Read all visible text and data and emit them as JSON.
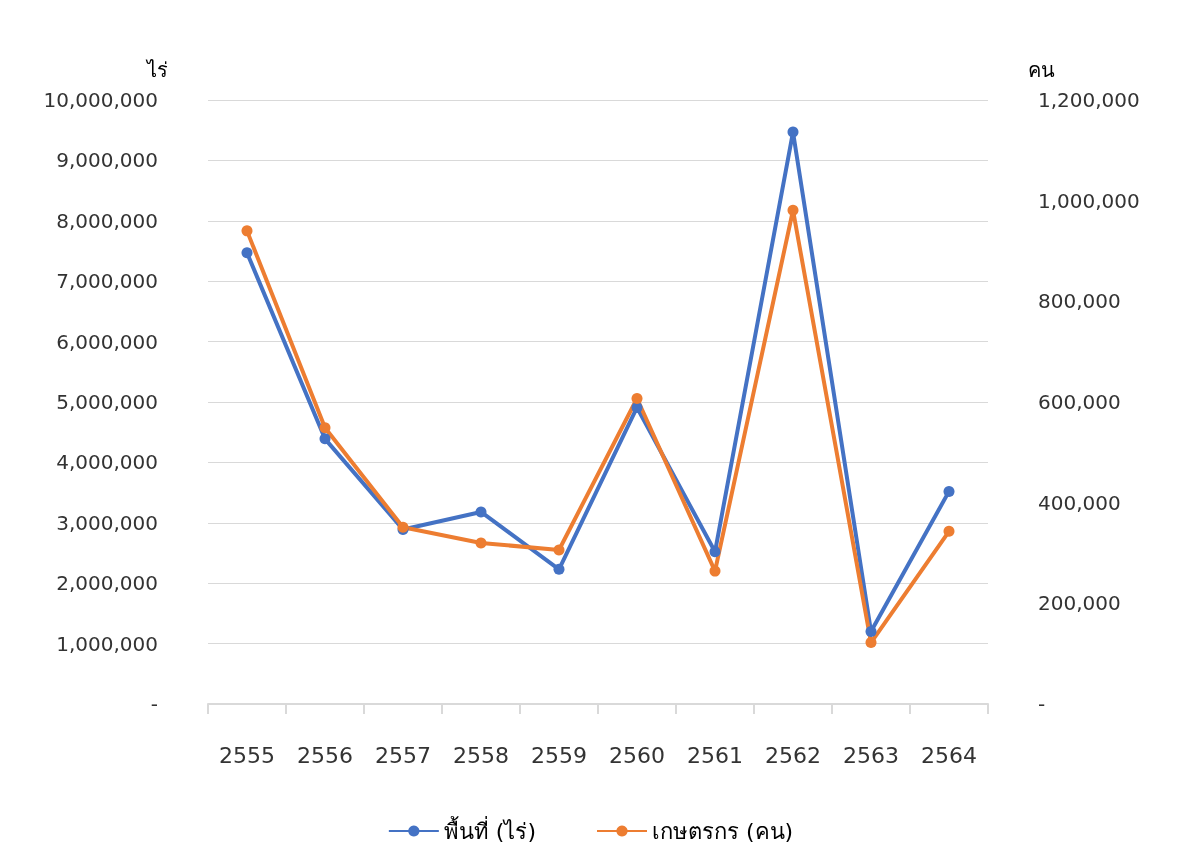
{
  "chart_data": {
    "type": "line",
    "ylabel": "ไร่",
    "y2label": "คน",
    "categories": [
      "2555",
      "2556",
      "2557",
      "2558",
      "2559",
      "2560",
      "2561",
      "2562",
      "2563",
      "2564"
    ],
    "series": [
      {
        "name": "พื้นที่ (ไร่)",
        "color": "#4472c4",
        "values": [
          7470000,
          4390000,
          2890000,
          3180000,
          2230000,
          4910000,
          2520000,
          9470000,
          1200000,
          3520000
        ]
      },
      {
        "name": "เกษตรกร (คน)",
        "color": "#ed7d31",
        "axis": "y2",
        "values": [
          940000,
          549000,
          351000,
          320000,
          306000,
          607000,
          264000,
          981000,
          122000,
          343000
        ]
      }
    ],
    "ylim": [
      0,
      10000000
    ],
    "yticks": [
      {
        "value": 0,
        "label": "-"
      },
      {
        "value": 1000000,
        "label": "1,000,000"
      },
      {
        "value": 2000000,
        "label": "2,000,000"
      },
      {
        "value": 3000000,
        "label": "3,000,000"
      },
      {
        "value": 4000000,
        "label": "4,000,000"
      },
      {
        "value": 5000000,
        "label": "5,000,000"
      },
      {
        "value": 6000000,
        "label": "6,000,000"
      },
      {
        "value": 7000000,
        "label": "7,000,000"
      },
      {
        "value": 8000000,
        "label": "8,000,000"
      },
      {
        "value": 9000000,
        "label": "9,000,000"
      },
      {
        "value": 10000000,
        "label": "10,000,000"
      }
    ],
    "y2lim": [
      0,
      1200000
    ],
    "y2ticks": [
      {
        "value": 0,
        "label": "-"
      },
      {
        "value": 200000,
        "label": "200,000"
      },
      {
        "value": 400000,
        "label": "400,000"
      },
      {
        "value": 600000,
        "label": "600,000"
      },
      {
        "value": 800000,
        "label": "800,000"
      },
      {
        "value": 1000000,
        "label": "1,000,000"
      },
      {
        "value": 1200000,
        "label": "1,200,000"
      }
    ],
    "grid": "y",
    "legend": "bottom",
    "marker": "circle",
    "line_style": "solid"
  }
}
